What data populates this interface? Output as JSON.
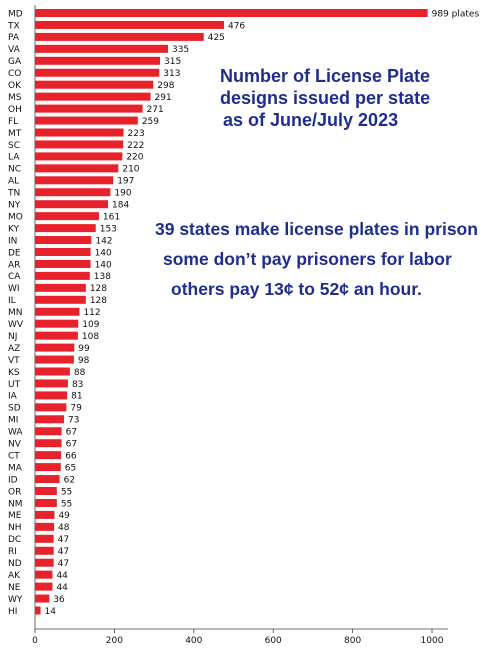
{
  "chart_data": {
    "type": "bar",
    "orientation": "horizontal",
    "categories": [
      "MD",
      "TX",
      "PA",
      "VA",
      "GA",
      "CO",
      "OK",
      "MS",
      "OH",
      "FL",
      "MT",
      "SC",
      "LA",
      "NC",
      "AL",
      "TN",
      "NY",
      "MO",
      "KY",
      "IN",
      "DE",
      "AR",
      "CA",
      "WI",
      "IL",
      "MN",
      "WV",
      "NJ",
      "AZ",
      "VT",
      "KS",
      "UT",
      "IA",
      "SD",
      "MI",
      "WA",
      "NV",
      "CT",
      "MA",
      "ID",
      "OR",
      "NM",
      "ME",
      "NH",
      "DC",
      "RI",
      "ND",
      "AK",
      "NE",
      "WY",
      "HI"
    ],
    "values": [
      989,
      476,
      425,
      335,
      315,
      313,
      298,
      291,
      271,
      259,
      223,
      222,
      220,
      210,
      197,
      190,
      184,
      161,
      153,
      142,
      140,
      140,
      138,
      128,
      128,
      112,
      109,
      108,
      99,
      98,
      88,
      83,
      81,
      79,
      73,
      67,
      67,
      66,
      65,
      62,
      55,
      55,
      49,
      48,
      47,
      47,
      47,
      44,
      44,
      36,
      14
    ],
    "value_labels": [
      "989 plates",
      "476",
      "425",
      "335",
      "315",
      "313",
      "298",
      "291",
      "271",
      "259",
      "223",
      "222",
      "220",
      "210",
      "197",
      "190",
      "184",
      "161",
      "153",
      "142",
      "140",
      "140",
      "138",
      "128",
      "128",
      "112",
      "109",
      "108",
      "99",
      "98",
      "88",
      "83",
      "81",
      "79",
      "73",
      "67",
      "67",
      "66",
      "65",
      "62",
      "55",
      "55",
      "49",
      "48",
      "47",
      "47",
      "47",
      "44",
      "44",
      "36",
      "14"
    ],
    "xlim": [
      0,
      1000
    ],
    "x_ticks": [
      0,
      200,
      400,
      600,
      800,
      1000
    ],
    "bar_color": "#e8222a",
    "grid": false,
    "title_lines": [
      "Number of License Plate",
      "designs issued per state",
      "as of June/July 2023"
    ],
    "annotation_lines": [
      "39 states make license plates in prison",
      "some don’t pay prisoners for labor",
      "others pay 13¢ to 52¢ an hour."
    ],
    "text_color": "#1f2d8f"
  }
}
